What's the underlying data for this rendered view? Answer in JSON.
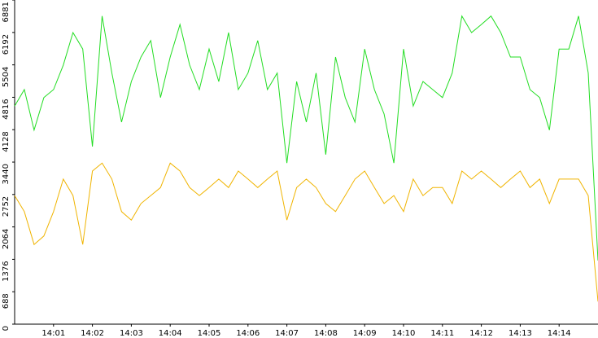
{
  "chart_data": {
    "type": "line",
    "x": [
      "14:00:00",
      "14:00:15",
      "14:00:30",
      "14:00:45",
      "14:01:00",
      "14:01:15",
      "14:01:30",
      "14:01:45",
      "14:02:00",
      "14:02:15",
      "14:02:30",
      "14:02:45",
      "14:03:00",
      "14:03:15",
      "14:03:30",
      "14:03:45",
      "14:04:00",
      "14:04:15",
      "14:04:30",
      "14:04:45",
      "14:05:00",
      "14:05:15",
      "14:05:30",
      "14:05:45",
      "14:06:00",
      "14:06:15",
      "14:06:30",
      "14:06:45",
      "14:07:00",
      "14:07:15",
      "14:07:30",
      "14:07:45",
      "14:08:00",
      "14:08:15",
      "14:08:30",
      "14:08:45",
      "14:09:00",
      "14:09:15",
      "14:09:30",
      "14:09:45",
      "14:10:00",
      "14:10:15",
      "14:10:30",
      "14:10:45",
      "14:11:00",
      "14:11:15",
      "14:11:30",
      "14:11:45",
      "14:12:00",
      "14:12:15",
      "14:12:30",
      "14:12:45",
      "14:13:00",
      "14:13:15",
      "14:13:30",
      "14:13:45",
      "14:14:00",
      "14:14:15",
      "14:14:30",
      "14:14:45",
      "14:15:00"
    ],
    "series": [
      {
        "color": "#22dd22",
        "values": [
          4630,
          4980,
          4120,
          4810,
          4980,
          5500,
          6190,
          5840,
          3770,
          6540,
          5330,
          4290,
          5150,
          5670,
          6020,
          4810,
          5670,
          6360,
          5500,
          4980,
          5840,
          5150,
          6190,
          4980,
          5330,
          6020,
          4980,
          5330,
          3420,
          5150,
          4290,
          5330,
          3600,
          5670,
          4810,
          4290,
          5840,
          4980,
          4460,
          3420,
          5840,
          4630,
          5150,
          4980,
          4810,
          5330,
          6540,
          6190,
          6360,
          6540,
          6190,
          5670,
          5670,
          4980,
          4810,
          4120,
          5840,
          5840,
          6540,
          5330,
          1350
        ]
      },
      {
        "color": "#f0b400",
        "values": [
          2730,
          2390,
          1690,
          1870,
          2390,
          3080,
          2730,
          1690,
          3250,
          3420,
          3080,
          2390,
          2210,
          2560,
          2730,
          2900,
          3420,
          3250,
          2900,
          2730,
          2900,
          3080,
          2900,
          3250,
          3080,
          2900,
          3080,
          3250,
          2210,
          2900,
          3080,
          2900,
          2560,
          2390,
          2730,
          3080,
          3250,
          2900,
          2560,
          2730,
          2390,
          3080,
          2730,
          2900,
          2900,
          2560,
          3250,
          3080,
          3250,
          3080,
          2900,
          3080,
          3250,
          2900,
          3080,
          2560,
          3080,
          3080,
          3080,
          2730,
          480
        ]
      }
    ],
    "xlim": [
      "14:00:00",
      "14:15:00"
    ],
    "xticks": [
      "14:01",
      "14:02",
      "14:03",
      "14:04",
      "14:05",
      "14:06",
      "14:07",
      "14:08",
      "14:09",
      "14:10",
      "14:11",
      "14:12",
      "14:13",
      "14:14"
    ],
    "ylim": [
      0,
      6881
    ],
    "yticks": [
      0,
      688,
      1376,
      2064,
      2752,
      3440,
      4128,
      4816,
      5504,
      6192,
      6881
    ]
  }
}
